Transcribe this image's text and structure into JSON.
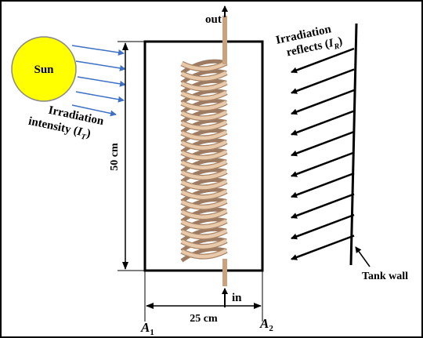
{
  "labels": {
    "out": "out",
    "in": "in",
    "sun": "Sun",
    "intensity": {
      "line1": "Irradiation",
      "line2": "intensity (",
      "symbol": "I",
      "sub": "T",
      "close": ")"
    },
    "reflects": {
      "line1": "Irradiation",
      "line2": "reflects (",
      "symbol": "I",
      "sub": "R",
      "close": ")"
    },
    "height": "50 cm",
    "width": "25 cm",
    "a1": {
      "main": "A",
      "sub": "1"
    },
    "a2": {
      "main": "A",
      "sub": "2"
    },
    "tank_wall": "Tank wall"
  }
}
